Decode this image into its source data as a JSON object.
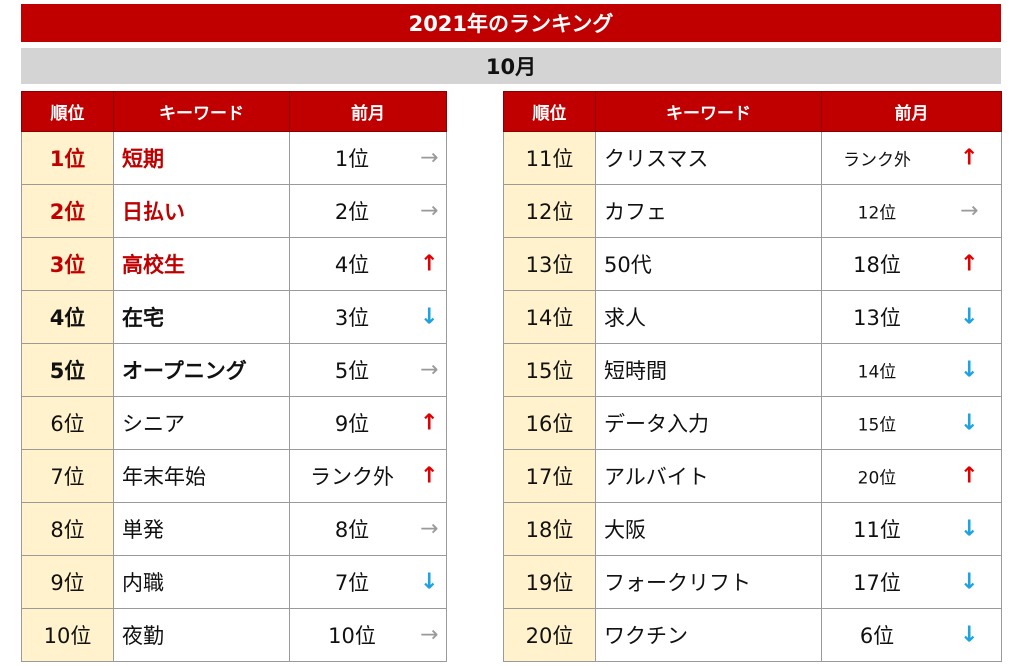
{
  "title": "2021年のランキング",
  "month": "10月",
  "headers": {
    "rank": "順位",
    "keyword": "キーワード",
    "prev": "前月"
  },
  "colors": {
    "header_red": "#c00000",
    "rank_bg": "#fff2cc",
    "arrow_up": "#e00000",
    "arrow_down": "#1fa3e0",
    "arrow_flat": "#9a9a9a"
  },
  "left": [
    {
      "rank": "1位",
      "keyword": "短期",
      "prev": "1位",
      "trend": "flat",
      "arrow": "→"
    },
    {
      "rank": "2位",
      "keyword": "日払い",
      "prev": "2位",
      "trend": "flat",
      "arrow": "→"
    },
    {
      "rank": "3位",
      "keyword": "高校生",
      "prev": "4位",
      "trend": "up",
      "arrow": "↑"
    },
    {
      "rank": "4位",
      "keyword": "在宅",
      "prev": "3位",
      "trend": "down",
      "arrow": "↓"
    },
    {
      "rank": "5位",
      "keyword": "オープニング",
      "prev": "5位",
      "trend": "flat",
      "arrow": "→"
    },
    {
      "rank": "6位",
      "keyword": "シニア",
      "prev": "9位",
      "trend": "up",
      "arrow": "↑"
    },
    {
      "rank": "7位",
      "keyword": "年末年始",
      "prev": "ランク外",
      "trend": "up",
      "arrow": "↑"
    },
    {
      "rank": "8位",
      "keyword": "単発",
      "prev": "8位",
      "trend": "flat",
      "arrow": "→"
    },
    {
      "rank": "9位",
      "keyword": "内職",
      "prev": "7位",
      "trend": "down",
      "arrow": "↓"
    },
    {
      "rank": "10位",
      "keyword": "夜勤",
      "prev": "10位",
      "trend": "flat",
      "arrow": "→"
    }
  ],
  "right": [
    {
      "rank": "11位",
      "keyword": "クリスマス",
      "prev": "ランク外",
      "trend": "up",
      "arrow": "↑"
    },
    {
      "rank": "12位",
      "keyword": "カフェ",
      "prev": "12位",
      "trend": "flat",
      "arrow": "→"
    },
    {
      "rank": "13位",
      "keyword": "50代",
      "prev": "18位",
      "trend": "up",
      "arrow": "↑"
    },
    {
      "rank": "14位",
      "keyword": "求人",
      "prev": "13位",
      "trend": "down",
      "arrow": "↓"
    },
    {
      "rank": "15位",
      "keyword": "短時間",
      "prev": "14位",
      "trend": "down",
      "arrow": "↓"
    },
    {
      "rank": "16位",
      "keyword": "データ入力",
      "prev": "15位",
      "trend": "down",
      "arrow": "↓"
    },
    {
      "rank": "17位",
      "keyword": "アルバイト",
      "prev": "20位",
      "trend": "up",
      "arrow": "↑"
    },
    {
      "rank": "18位",
      "keyword": "大阪",
      "prev": "11位",
      "trend": "down",
      "arrow": "↓"
    },
    {
      "rank": "19位",
      "keyword": "フォークリフト",
      "prev": "17位",
      "trend": "down",
      "arrow": "↓"
    },
    {
      "rank": "20位",
      "keyword": "ワクチン",
      "prev": "6位",
      "trend": "down",
      "arrow": "↓"
    }
  ]
}
